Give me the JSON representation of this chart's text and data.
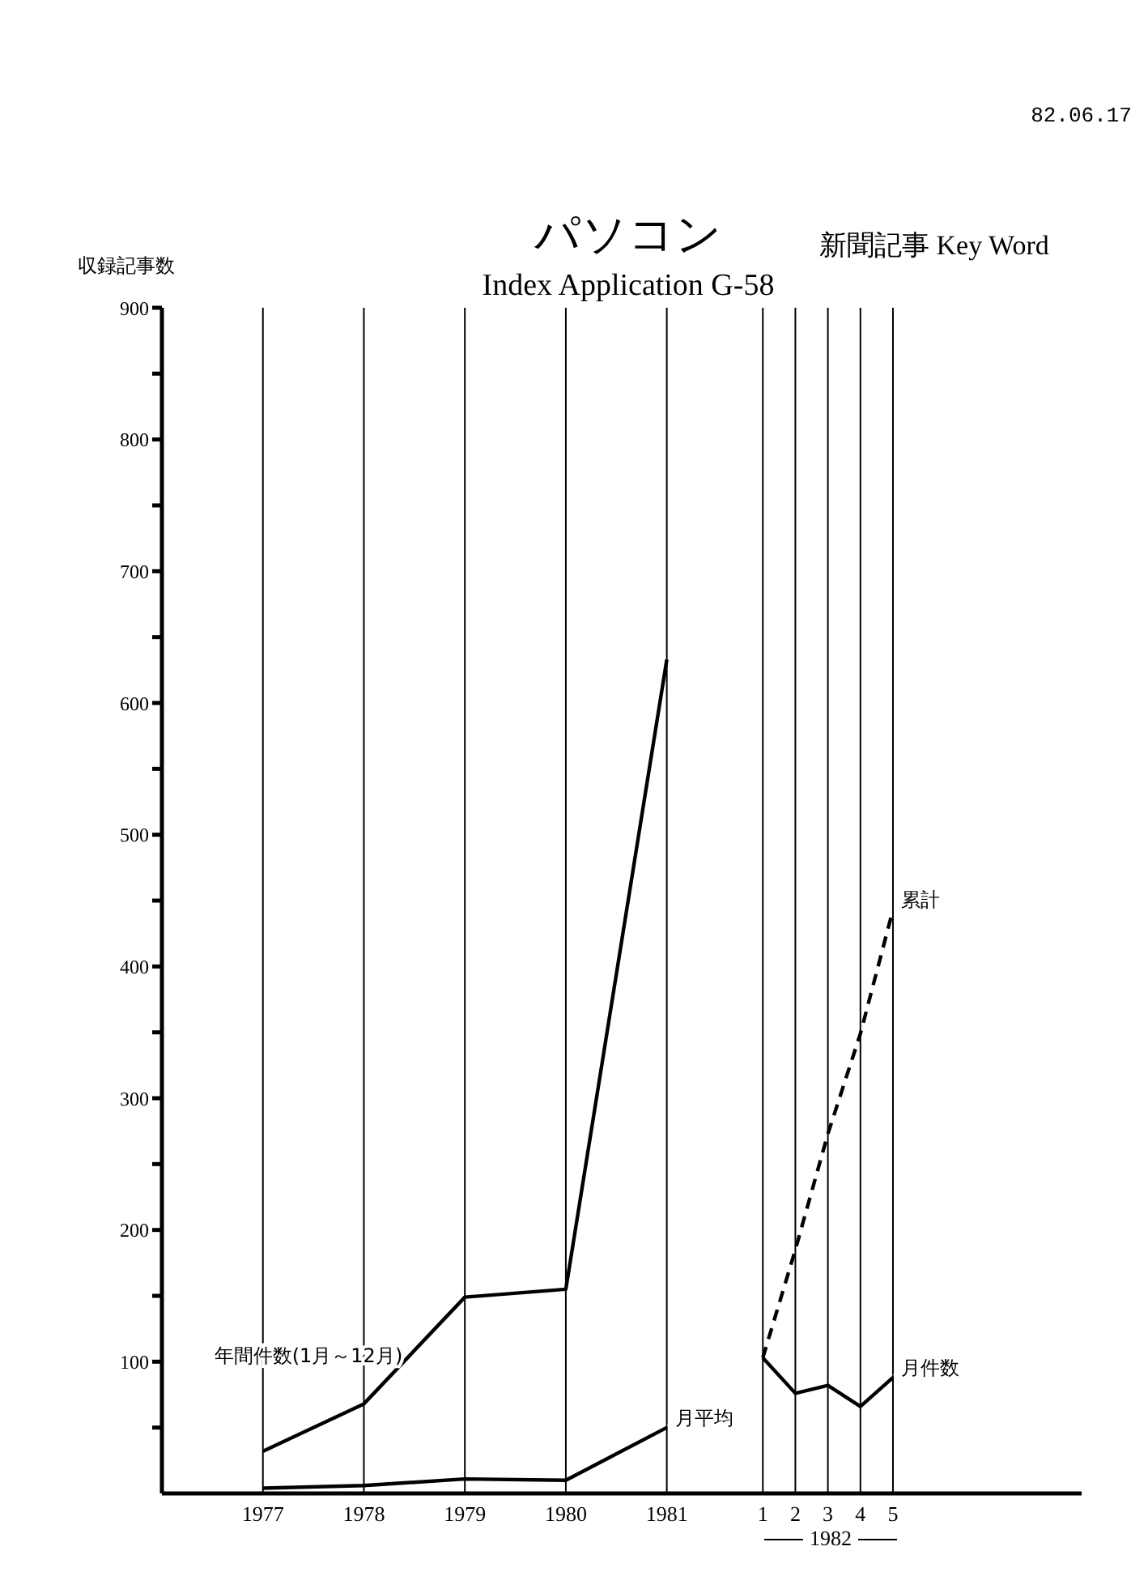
{
  "chart_data": [
    {
      "type": "line",
      "title": "パソコン",
      "subtitle": "Index Application G-58",
      "ylabel": "収録記事数",
      "annotations": [
        "新聞記事 Key Word",
        "82.06.17"
      ],
      "categories": [
        "1977",
        "1978",
        "1979",
        "1980",
        "1981"
      ],
      "series": [
        {
          "name": "年間件数(1月～12月)",
          "color": "#000000",
          "values": [
            32,
            68,
            149,
            155,
            633
          ]
        },
        {
          "name": "月平均",
          "color": "#000000",
          "values": [
            4,
            6,
            11,
            10,
            50
          ]
        }
      ],
      "ylim": [
        0,
        900
      ],
      "yticks": [
        {
          "value": 50,
          "label": null
        },
        100,
        {
          "value": 150,
          "label": null
        },
        200,
        {
          "value": 250,
          "label": null
        },
        300,
        {
          "value": 350,
          "label": null
        },
        400,
        {
          "value": 450,
          "label": null
        },
        500,
        {
          "value": 550,
          "label": null
        },
        600,
        {
          "value": 650,
          "label": null
        },
        700,
        {
          "value": 750,
          "label": null
        },
        800,
        {
          "value": 850,
          "label": null
        },
        900
      ],
      "grid": "x",
      "legend": false
    },
    {
      "type": "line",
      "xlabel": "1982",
      "categories": [
        "1",
        "2",
        "3",
        "4",
        "5"
      ],
      "series": [
        {
          "name": "累計",
          "color": "#000000",
          "line_style": "dashed",
          "values": [
            103,
            185,
            273,
            349,
            443
          ]
        },
        {
          "name": "月件数",
          "color": "#000000",
          "values": [
            103,
            76,
            82,
            66,
            88
          ]
        }
      ],
      "ylim": [
        0,
        900
      ],
      "tick_labels": "x",
      "grid": "x",
      "legend": false
    }
  ]
}
